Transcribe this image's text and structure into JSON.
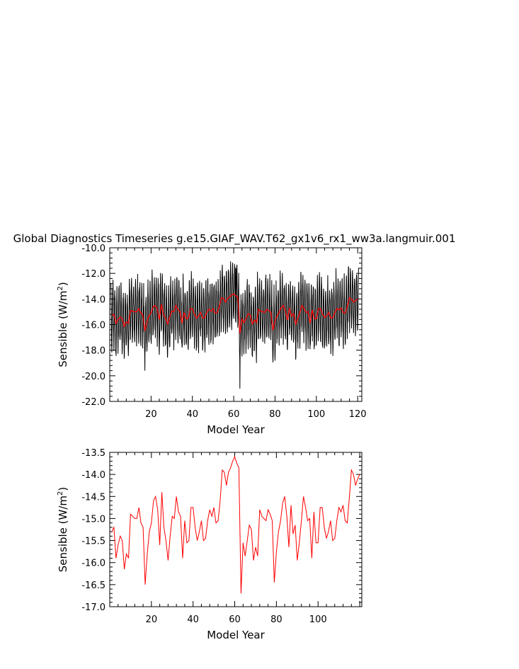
{
  "title": "Global Diagnostics Timeseries g.e15.GIAF_WAV.T62_gx1v6_rx1_ww3a.langmuir.001",
  "colors": {
    "monthly": "#000000",
    "annual": "#ff0000",
    "axis": "#000000"
  },
  "chart_data": [
    {
      "type": "line",
      "panel": "top",
      "xlabel": "Model Year",
      "ylabel_main": "Sensible (W/m",
      "ylabel_sup": "2",
      "ylabel_tail": ")",
      "xlim": [
        0,
        122
      ],
      "ylim": [
        -22.0,
        -10.0
      ],
      "xticks": [
        20,
        40,
        60,
        80,
        100,
        120
      ],
      "xtick_labels": [
        "20",
        "40",
        "60",
        "80",
        "100",
        "120"
      ],
      "yticks": [
        -22.0,
        -20.0,
        -18.0,
        -16.0,
        -14.0,
        -12.0,
        -10.0
      ],
      "ytick_labels": [
        "-22.0",
        "-20.0",
        "-18.0",
        "-16.0",
        "-14.0",
        "-12.0",
        "-10.0"
      ],
      "series": [
        {
          "description": "monthly values (black, approximate envelope)",
          "monthly_amplitude_approx": 2.3,
          "min_value_year": 63,
          "min_value": -21.0,
          "max_value_year": 61,
          "max_value": -11.6
        },
        {
          "description": "annual mean (red)",
          "same_as_bottom_panel": true
        }
      ]
    },
    {
      "type": "line",
      "panel": "bottom",
      "xlabel": "Model Year",
      "ylabel_main": "Sensible (W/m",
      "ylabel_sup": "2",
      "ylabel_tail": ")",
      "xlim": [
        0,
        121
      ],
      "ylim": [
        -17.0,
        -13.5
      ],
      "xticks": [
        20,
        40,
        60,
        80,
        100
      ],
      "xtick_labels": [
        "20",
        "40",
        "60",
        "80",
        "100"
      ],
      "yticks": [
        -17.0,
        -16.5,
        -16.0,
        -15.5,
        -15.0,
        -14.5,
        -14.0,
        -13.5
      ],
      "ytick_labels": [
        "-17.0",
        "-16.5",
        "-16.0",
        "-15.5",
        "-15.0",
        "-14.5",
        "-14.0",
        "-13.5"
      ],
      "x": [
        1,
        2,
        3,
        4,
        5,
        6,
        7,
        8,
        9,
        10,
        11,
        12,
        13,
        14,
        15,
        16,
        17,
        18,
        19,
        20,
        21,
        22,
        23,
        24,
        25,
        26,
        27,
        28,
        29,
        30,
        31,
        32,
        33,
        34,
        35,
        36,
        37,
        38,
        39,
        40,
        41,
        42,
        43,
        44,
        45,
        46,
        47,
        48,
        49,
        50,
        51,
        52,
        53,
        54,
        55,
        56,
        57,
        58,
        59,
        60,
        61,
        62,
        63,
        64,
        65,
        66,
        67,
        68,
        69,
        70,
        71,
        72,
        73,
        74,
        75,
        76,
        77,
        78,
        79,
        80,
        81,
        82,
        83,
        84,
        85,
        86,
        87,
        88,
        89,
        90,
        91,
        92,
        93,
        94,
        95,
        96,
        97,
        98,
        99,
        100,
        101,
        102,
        103,
        104,
        105,
        106,
        107,
        108,
        109,
        110,
        111,
        112,
        113,
        114,
        115,
        116,
        117,
        118,
        119,
        120
      ],
      "values": [
        -15.3,
        -15.2,
        -15.9,
        -15.6,
        -15.4,
        -15.5,
        -16.15,
        -15.8,
        -15.9,
        -14.9,
        -14.95,
        -15.0,
        -15.0,
        -14.75,
        -15.1,
        -15.2,
        -16.5,
        -15.8,
        -15.3,
        -15.1,
        -14.6,
        -14.5,
        -14.8,
        -15.6,
        -14.4,
        -15.2,
        -15.5,
        -15.95,
        -15.4,
        -14.95,
        -15.0,
        -14.5,
        -14.85,
        -14.95,
        -15.9,
        -15.05,
        -15.55,
        -15.5,
        -14.75,
        -14.75,
        -15.2,
        -15.5,
        -15.3,
        -15.05,
        -15.5,
        -15.45,
        -15.05,
        -14.8,
        -14.95,
        -14.75,
        -15.1,
        -15.05,
        -14.6,
        -13.9,
        -13.95,
        -14.25,
        -13.95,
        -13.85,
        -13.7,
        -13.6,
        -13.75,
        -13.85,
        -16.7,
        -15.55,
        -15.85,
        -15.5,
        -15.15,
        -15.25,
        -15.95,
        -15.65,
        -15.85,
        -14.8,
        -14.95,
        -15.0,
        -15.05,
        -14.8,
        -14.9,
        -15.05,
        -16.45,
        -15.75,
        -15.3,
        -15.05,
        -14.65,
        -14.5,
        -14.95,
        -15.65,
        -14.7,
        -15.35,
        -15.15,
        -15.95,
        -15.55,
        -15.05,
        -14.5,
        -14.75,
        -15.05,
        -15.0,
        -15.9,
        -14.85,
        -15.55,
        -15.55,
        -14.75,
        -14.75,
        -15.2,
        -15.45,
        -15.3,
        -15.05,
        -15.5,
        -15.45,
        -15.05,
        -14.75,
        -14.85,
        -14.7,
        -15.05,
        -15.1,
        -14.55,
        -13.9,
        -14.0,
        -14.25,
        -14.1,
        -14.0
      ]
    }
  ]
}
